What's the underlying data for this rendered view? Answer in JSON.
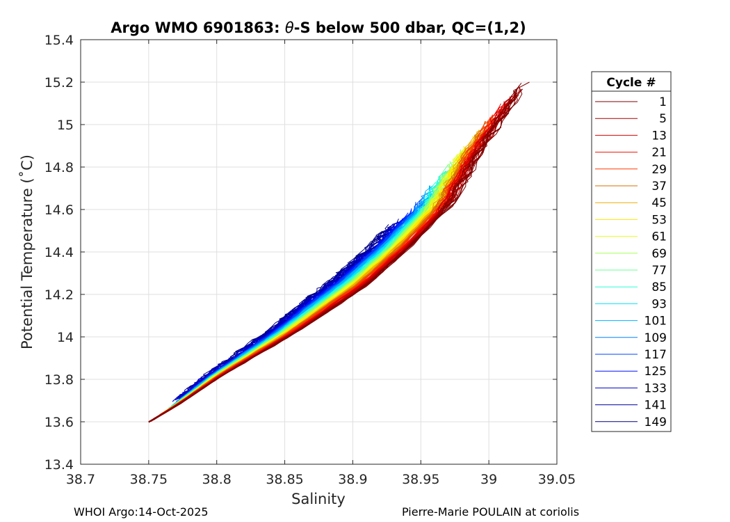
{
  "chart_data": {
    "type": "line",
    "title_prefix": "Argo WMO 6901863: ",
    "title_theta": "θ",
    "title_suffix": "-S below 500 dbar,  QC=(1,2)",
    "xlabel": "Salinity",
    "ylabel": "Potential Temperature (˚C)",
    "xlim": [
      38.7,
      39.05
    ],
    "ylim": [
      13.4,
      15.4
    ],
    "xticks": [
      "38.7",
      "38.75",
      "38.8",
      "38.85",
      "38.9",
      "38.95",
      "39",
      "39.05"
    ],
    "yticks": [
      "13.4",
      "13.6",
      "13.8",
      "14",
      "14.2",
      "14.4",
      "14.6",
      "14.8",
      "15",
      "15.2",
      "15.4"
    ],
    "grid": true,
    "legend": {
      "title": "Cycle #",
      "placement": "right",
      "entries": [
        "1",
        "5",
        "13",
        "21",
        "29",
        "37",
        "45",
        "53",
        "61",
        "69",
        "77",
        "85",
        "93",
        "101",
        "109",
        "117",
        "125",
        "133",
        "141",
        "149"
      ],
      "colors": [
        "#800000",
        "#a50000",
        "#d40000",
        "#f00f00",
        "#ff3800",
        "#d47000",
        "#eeab00",
        "#ffe600",
        "#e5ff1a",
        "#a6ff59",
        "#6bff94",
        "#2cffd3",
        "#00e5ff",
        "#00b1ff",
        "#0080ff",
        "#0040ff",
        "#0010ff",
        "#0000cc",
        "#00009a",
        "#000080"
      ]
    },
    "series_summary": {
      "x": [
        38.748,
        38.77,
        38.8,
        38.85,
        38.9,
        38.93,
        38.96,
        38.98,
        39.0,
        39.015
      ],
      "y": [
        13.59,
        13.68,
        13.82,
        14.02,
        14.25,
        14.42,
        14.62,
        14.85,
        15.05,
        15.2
      ]
    }
  },
  "footer": {
    "left": "WHOI Argo:14-Oct-2025",
    "right": "Pierre-Marie POULAIN at coriolis"
  }
}
